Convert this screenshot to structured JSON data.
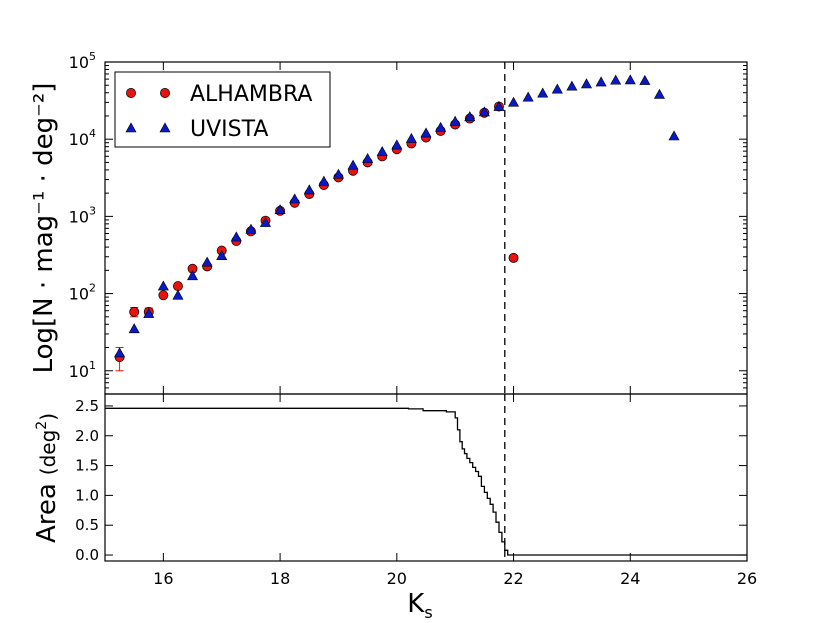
{
  "chart_data": [
    {
      "type": "scatter",
      "yscale": "log",
      "xlim": [
        15,
        26
      ],
      "ylim": [
        5,
        100000
      ],
      "ylabel": "Log[N · mag⁻¹ · deg⁻²]",
      "ytick_labels": [
        {
          "value": 10,
          "base": "10",
          "exp": "1"
        },
        {
          "value": 100,
          "base": "10",
          "exp": "2"
        },
        {
          "value": 1000,
          "base": "10",
          "exp": "3"
        },
        {
          "value": 10000,
          "base": "10",
          "exp": "4"
        },
        {
          "value": 100000,
          "base": "10",
          "exp": "5"
        }
      ],
      "vline_x": 21.85,
      "legend": {
        "position": "upper-left",
        "entries": [
          "ALHAMBRA",
          "UVISTA"
        ]
      },
      "series": [
        {
          "name": "ALHAMBRA",
          "marker": "circle",
          "color": "#e8120f",
          "x": [
            15.25,
            15.5,
            15.75,
            16.0,
            16.25,
            16.5,
            16.75,
            17.0,
            17.25,
            17.5,
            17.75,
            18.0,
            18.25,
            18.5,
            18.75,
            19.0,
            19.25,
            19.5,
            19.75,
            20.0,
            20.25,
            20.5,
            20.75,
            21.0,
            21.25,
            21.5,
            21.75,
            22.0
          ],
          "y": [
            15,
            58,
            58,
            95,
            125,
            210,
            225,
            360,
            480,
            640,
            880,
            1180,
            1500,
            1950,
            2550,
            3200,
            3900,
            5000,
            6000,
            7400,
            8800,
            10500,
            12800,
            15500,
            18500,
            22000,
            26500,
            290
          ],
          "y_err": [
            [
              5,
              5
            ],
            [
              8,
              8
            ],
            [
              7,
              7
            ]
          ]
        },
        {
          "name": "UVISTA",
          "marker": "triangle",
          "color": "#0a19c8",
          "x": [
            15.25,
            15.5,
            15.75,
            16.0,
            16.25,
            16.5,
            16.75,
            17.0,
            17.25,
            17.5,
            17.75,
            18.0,
            18.25,
            18.5,
            18.75,
            19.0,
            19.25,
            19.5,
            19.75,
            20.0,
            20.25,
            20.5,
            20.75,
            21.0,
            21.25,
            21.5,
            21.75,
            22.0,
            22.25,
            22.5,
            22.75,
            23.0,
            23.25,
            23.5,
            23.75,
            24.0,
            24.25,
            24.5,
            24.75
          ],
          "y": [
            17,
            35,
            55,
            125,
            95,
            170,
            255,
            310,
            540,
            680,
            830,
            1220,
            1680,
            2200,
            2850,
            3500,
            4600,
            5600,
            6900,
            8400,
            10200,
            12000,
            14200,
            17000,
            19500,
            22500,
            26500,
            30000,
            35000,
            39500,
            44500,
            48500,
            52000,
            55000,
            58000,
            58500,
            57500,
            38000,
            11000
          ]
        }
      ]
    },
    {
      "type": "line",
      "xlim": [
        15,
        26
      ],
      "ylim": [
        -0.1,
        2.7
      ],
      "xlabel": "K",
      "xlabel_sub": "s",
      "ylabel": "Area",
      "ylabel_unit_open": "(deg",
      "ylabel_unit_exp": "2",
      "ylabel_unit_close": ")",
      "xticks": [
        16,
        18,
        20,
        22,
        24,
        26
      ],
      "xtick_labels": [
        "16",
        "18",
        "20",
        "22",
        "24",
        "26"
      ],
      "yticks": [
        0.0,
        0.5,
        1.0,
        1.5,
        2.0,
        2.5
      ],
      "ytick_labels": [
        "0.0",
        "0.5",
        "1.0",
        "1.5",
        "2.0",
        "2.5"
      ],
      "vline_x": 21.85,
      "step_x": [
        15.0,
        20.2,
        20.2,
        20.45,
        20.45,
        20.85,
        20.85,
        21.0,
        21.0,
        21.04,
        21.04,
        21.08,
        21.08,
        21.12,
        21.12,
        21.16,
        21.16,
        21.2,
        21.2,
        21.25,
        21.25,
        21.3,
        21.3,
        21.35,
        21.35,
        21.4,
        21.4,
        21.45,
        21.45,
        21.5,
        21.5,
        21.55,
        21.55,
        21.6,
        21.6,
        21.65,
        21.65,
        21.7,
        21.7,
        21.75,
        21.75,
        21.8,
        21.8,
        21.85,
        21.85,
        21.9,
        21.9,
        26.0
      ],
      "step_y": [
        2.46,
        2.46,
        2.45,
        2.45,
        2.42,
        2.42,
        2.4,
        2.4,
        2.3,
        2.3,
        2.1,
        2.1,
        1.9,
        1.9,
        1.78,
        1.78,
        1.7,
        1.7,
        1.62,
        1.62,
        1.55,
        1.55,
        1.47,
        1.47,
        1.4,
        1.4,
        1.32,
        1.32,
        1.15,
        1.15,
        1.05,
        1.05,
        0.95,
        0.95,
        0.85,
        0.85,
        0.72,
        0.72,
        0.55,
        0.55,
        0.38,
        0.38,
        0.22,
        0.22,
        0.08,
        0.08,
        0.0,
        0.0
      ]
    }
  ]
}
